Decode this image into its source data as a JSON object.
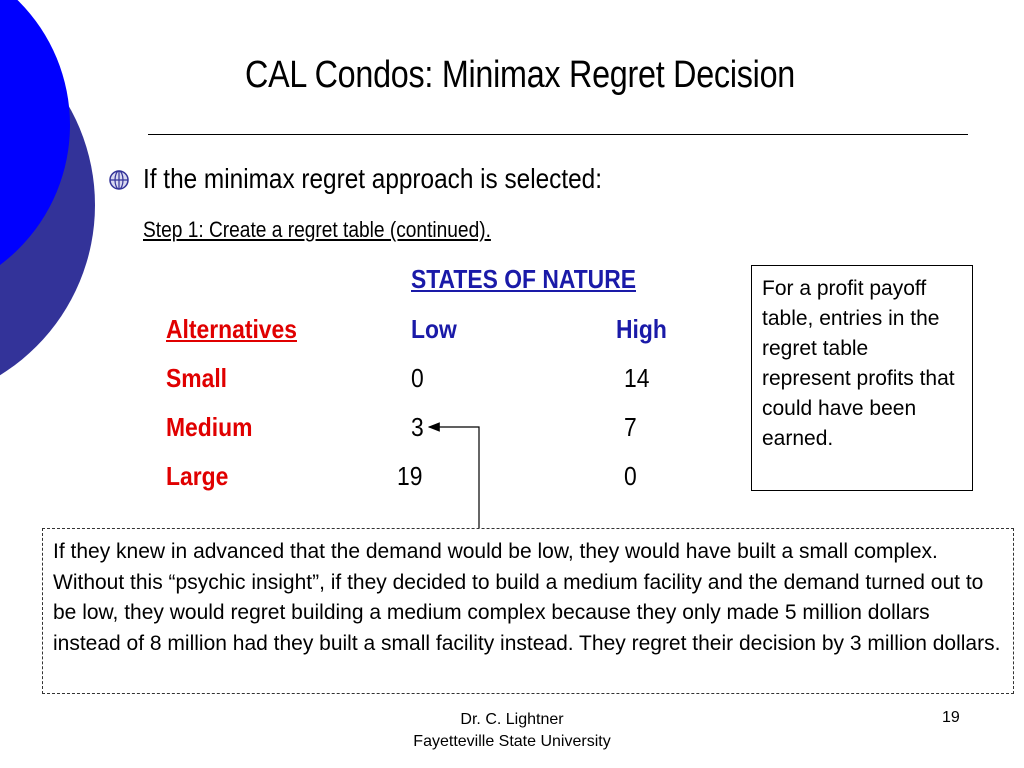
{
  "slide": {
    "title": "CAL Condos: Minimax Regret Decision",
    "bullet": "If the minimax regret approach is selected:",
    "step": "Step 1: Create a regret table (continued)."
  },
  "table": {
    "states_header": "STATES OF NATURE",
    "alternatives_header": "Alternatives",
    "columns": [
      "Low",
      "High"
    ],
    "rows": [
      {
        "label": "Small",
        "low": "0",
        "high": "14"
      },
      {
        "label": "Medium",
        "low": "3",
        "high": "7"
      },
      {
        "label": "Large",
        "low": "19",
        "high": "0"
      }
    ]
  },
  "callouts": {
    "right": "For a profit payoff table, entries in the regret table represent profits that could have been earned.",
    "bottom": "If they knew in advanced that the demand would be low, they would have built a small complex.  Without this “psychic insight”, if they decided to build a medium facility and the demand turned out to be low, they would regret building a medium complex because they only made 5 million dollars instead of 8 million had they built a small facility instead.  They regret their decision by 3 million dollars."
  },
  "footer": {
    "author": "Dr. C. Lightner",
    "institution": "Fayetteville State University",
    "page": "19"
  },
  "colors": {
    "accent_blue": "#0000ff",
    "accent_dark_blue": "#333399",
    "label_red": "#e00000",
    "header_blue": "#1a1aa8"
  }
}
